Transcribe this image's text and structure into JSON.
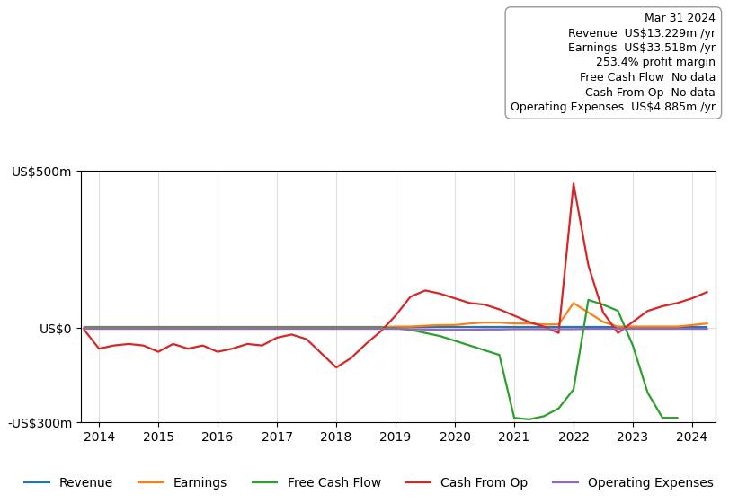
{
  "chart_data": {
    "type": "line",
    "x": [
      2013.75,
      2014.0,
      2014.25,
      2014.5,
      2014.75,
      2015.0,
      2015.25,
      2015.5,
      2015.75,
      2016.0,
      2016.25,
      2016.5,
      2016.75,
      2017.0,
      2017.25,
      2017.5,
      2017.75,
      2018.0,
      2018.25,
      2018.5,
      2018.75,
      2019.0,
      2019.25,
      2019.5,
      2019.75,
      2020.0,
      2020.25,
      2020.5,
      2020.75,
      2021.0,
      2021.25,
      2021.5,
      2021.75,
      2022.0,
      2022.25,
      2022.5,
      2022.75,
      2023.0,
      2023.25,
      2023.5,
      2023.75,
      2024.0,
      2024.25
    ],
    "series": [
      {
        "name": "Revenue",
        "values": [
          3,
          3,
          3,
          3,
          3,
          3,
          3,
          3,
          3,
          3,
          3,
          3,
          3,
          3,
          3,
          3,
          3,
          3,
          3,
          3,
          3,
          3,
          3,
          3,
          3,
          3,
          3,
          3,
          3,
          3,
          3,
          3,
          3,
          3,
          3,
          3,
          3,
          3,
          3,
          3,
          3,
          3,
          3
        ]
      },
      {
        "name": "Earnings",
        "values": [
          2,
          2,
          2,
          2,
          2,
          2,
          2,
          2,
          2,
          2,
          2,
          2,
          2,
          2,
          2,
          2,
          2,
          2,
          2,
          2,
          2,
          5,
          5,
          8,
          10,
          10,
          15,
          18,
          18,
          15,
          15,
          12,
          12,
          80,
          50,
          20,
          5,
          5,
          5,
          5,
          5,
          10,
          15
        ]
      },
      {
        "name": "Free Cash Flow",
        "values": [
          0,
          0,
          0,
          0,
          0,
          0,
          0,
          0,
          0,
          0,
          0,
          0,
          0,
          0,
          0,
          0,
          0,
          0,
          0,
          0,
          0,
          0,
          -5,
          -15,
          -25,
          -40,
          -55,
          -70,
          -85,
          -285,
          -290,
          -280,
          -255,
          -195,
          90,
          75,
          55,
          -55,
          -205,
          -285,
          -285,
          null,
          null
        ]
      },
      {
        "name": "Cash From Op",
        "values": [
          -5,
          -65,
          -55,
          -50,
          -55,
          -75,
          -50,
          -65,
          -55,
          -75,
          -65,
          -50,
          -55,
          -30,
          -20,
          -35,
          -80,
          -125,
          -95,
          -50,
          -10,
          40,
          100,
          120,
          110,
          95,
          80,
          75,
          60,
          40,
          20,
          5,
          -15,
          460,
          200,
          50,
          -15,
          20,
          55,
          70,
          80,
          95,
          115
        ]
      },
      {
        "name": "Operating Expenses",
        "values": [
          -2,
          -2,
          -2,
          -2,
          -2,
          -2,
          -2,
          -2,
          -2,
          -2,
          -2,
          -2,
          -2,
          -2,
          -2,
          -2,
          -2,
          -2,
          -2,
          -2,
          -2,
          -2,
          -3,
          -4,
          -5,
          -5,
          -5,
          -4,
          -4,
          -3,
          -3,
          -3,
          -3,
          -3,
          -2,
          -2,
          -2,
          -2,
          -2,
          -2,
          -2,
          -2,
          -2
        ]
      }
    ],
    "xlim": [
      2013.7,
      2024.4
    ],
    "xticks": [
      2014,
      2015,
      2016,
      2017,
      2018,
      2019,
      2020,
      2021,
      2022,
      2023,
      2024
    ],
    "ylim": [
      -300,
      500
    ],
    "yticks": [
      {
        "value": -300,
        "label": "-US$300m"
      },
      {
        "value": 0,
        "label": "US$0"
      },
      {
        "value": 500,
        "label": "US$500m"
      }
    ],
    "grid": true,
    "legend": "lower center",
    "annotations": [
      "Mar 31 2024",
      "Revenue  US$13.229m /yr",
      "Earnings  US$33.518m /yr",
      "253.4% profit margin",
      "Free Cash Flow  No data",
      "Cash From Op  No data",
      "Operating Expenses  US$4.885m /yr"
    ]
  }
}
